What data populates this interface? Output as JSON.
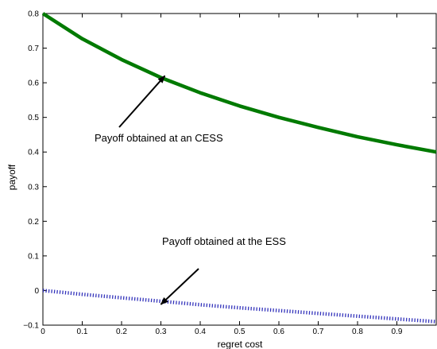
{
  "chart_data": {
    "type": "line",
    "title": "",
    "xlabel": "regret cost",
    "ylabel": "payoff",
    "xlim": [
      0,
      1
    ],
    "ylim": [
      -0.1,
      0.8
    ],
    "xticks": [
      0,
      0.1,
      0.2,
      0.3,
      0.4,
      0.5,
      0.6,
      0.7,
      0.8,
      0.9
    ],
    "xtick_labels": [
      "0",
      "0.1",
      "0.2",
      "0.3",
      "0.4",
      "0.5",
      "0.6",
      "0.7",
      "0.8",
      "0.9"
    ],
    "yticks": [
      -0.1,
      0,
      0.1,
      0.2,
      0.3,
      0.4,
      0.5,
      0.6,
      0.7,
      0.8
    ],
    "ytick_labels": [
      "−0.1",
      "0",
      "0.1",
      "0.2",
      "0.3",
      "0.4",
      "0.5",
      "0.6",
      "0.7",
      "0.8"
    ],
    "grid": false,
    "series": [
      {
        "color": "#007a00",
        "line_style": "solid",
        "x": [
          0,
          0.1,
          0.2,
          0.3,
          0.4,
          0.5,
          0.6,
          0.7,
          0.8,
          0.9,
          1.0
        ],
        "y": [
          0.8,
          0.727,
          0.667,
          0.615,
          0.571,
          0.533,
          0.5,
          0.471,
          0.444,
          0.421,
          0.4
        ]
      },
      {
        "color": "#3333bb",
        "line_style": "dotted",
        "x": [
          0,
          0.1,
          0.2,
          0.3,
          0.4,
          0.5,
          0.6,
          0.7,
          0.8,
          0.9,
          1.0
        ],
        "y": [
          0.0,
          -0.011,
          -0.021,
          -0.031,
          -0.041,
          -0.05,
          -0.058,
          -0.066,
          -0.074,
          -0.082,
          -0.09
        ]
      }
    ],
    "annotations": [
      {
        "text": "Payoff obtained at an CESS",
        "point": [
          0.31,
          0.62
        ]
      },
      {
        "text": "Payoff obtained at the ESS",
        "point": [
          0.3,
          -0.04
        ]
      }
    ]
  }
}
